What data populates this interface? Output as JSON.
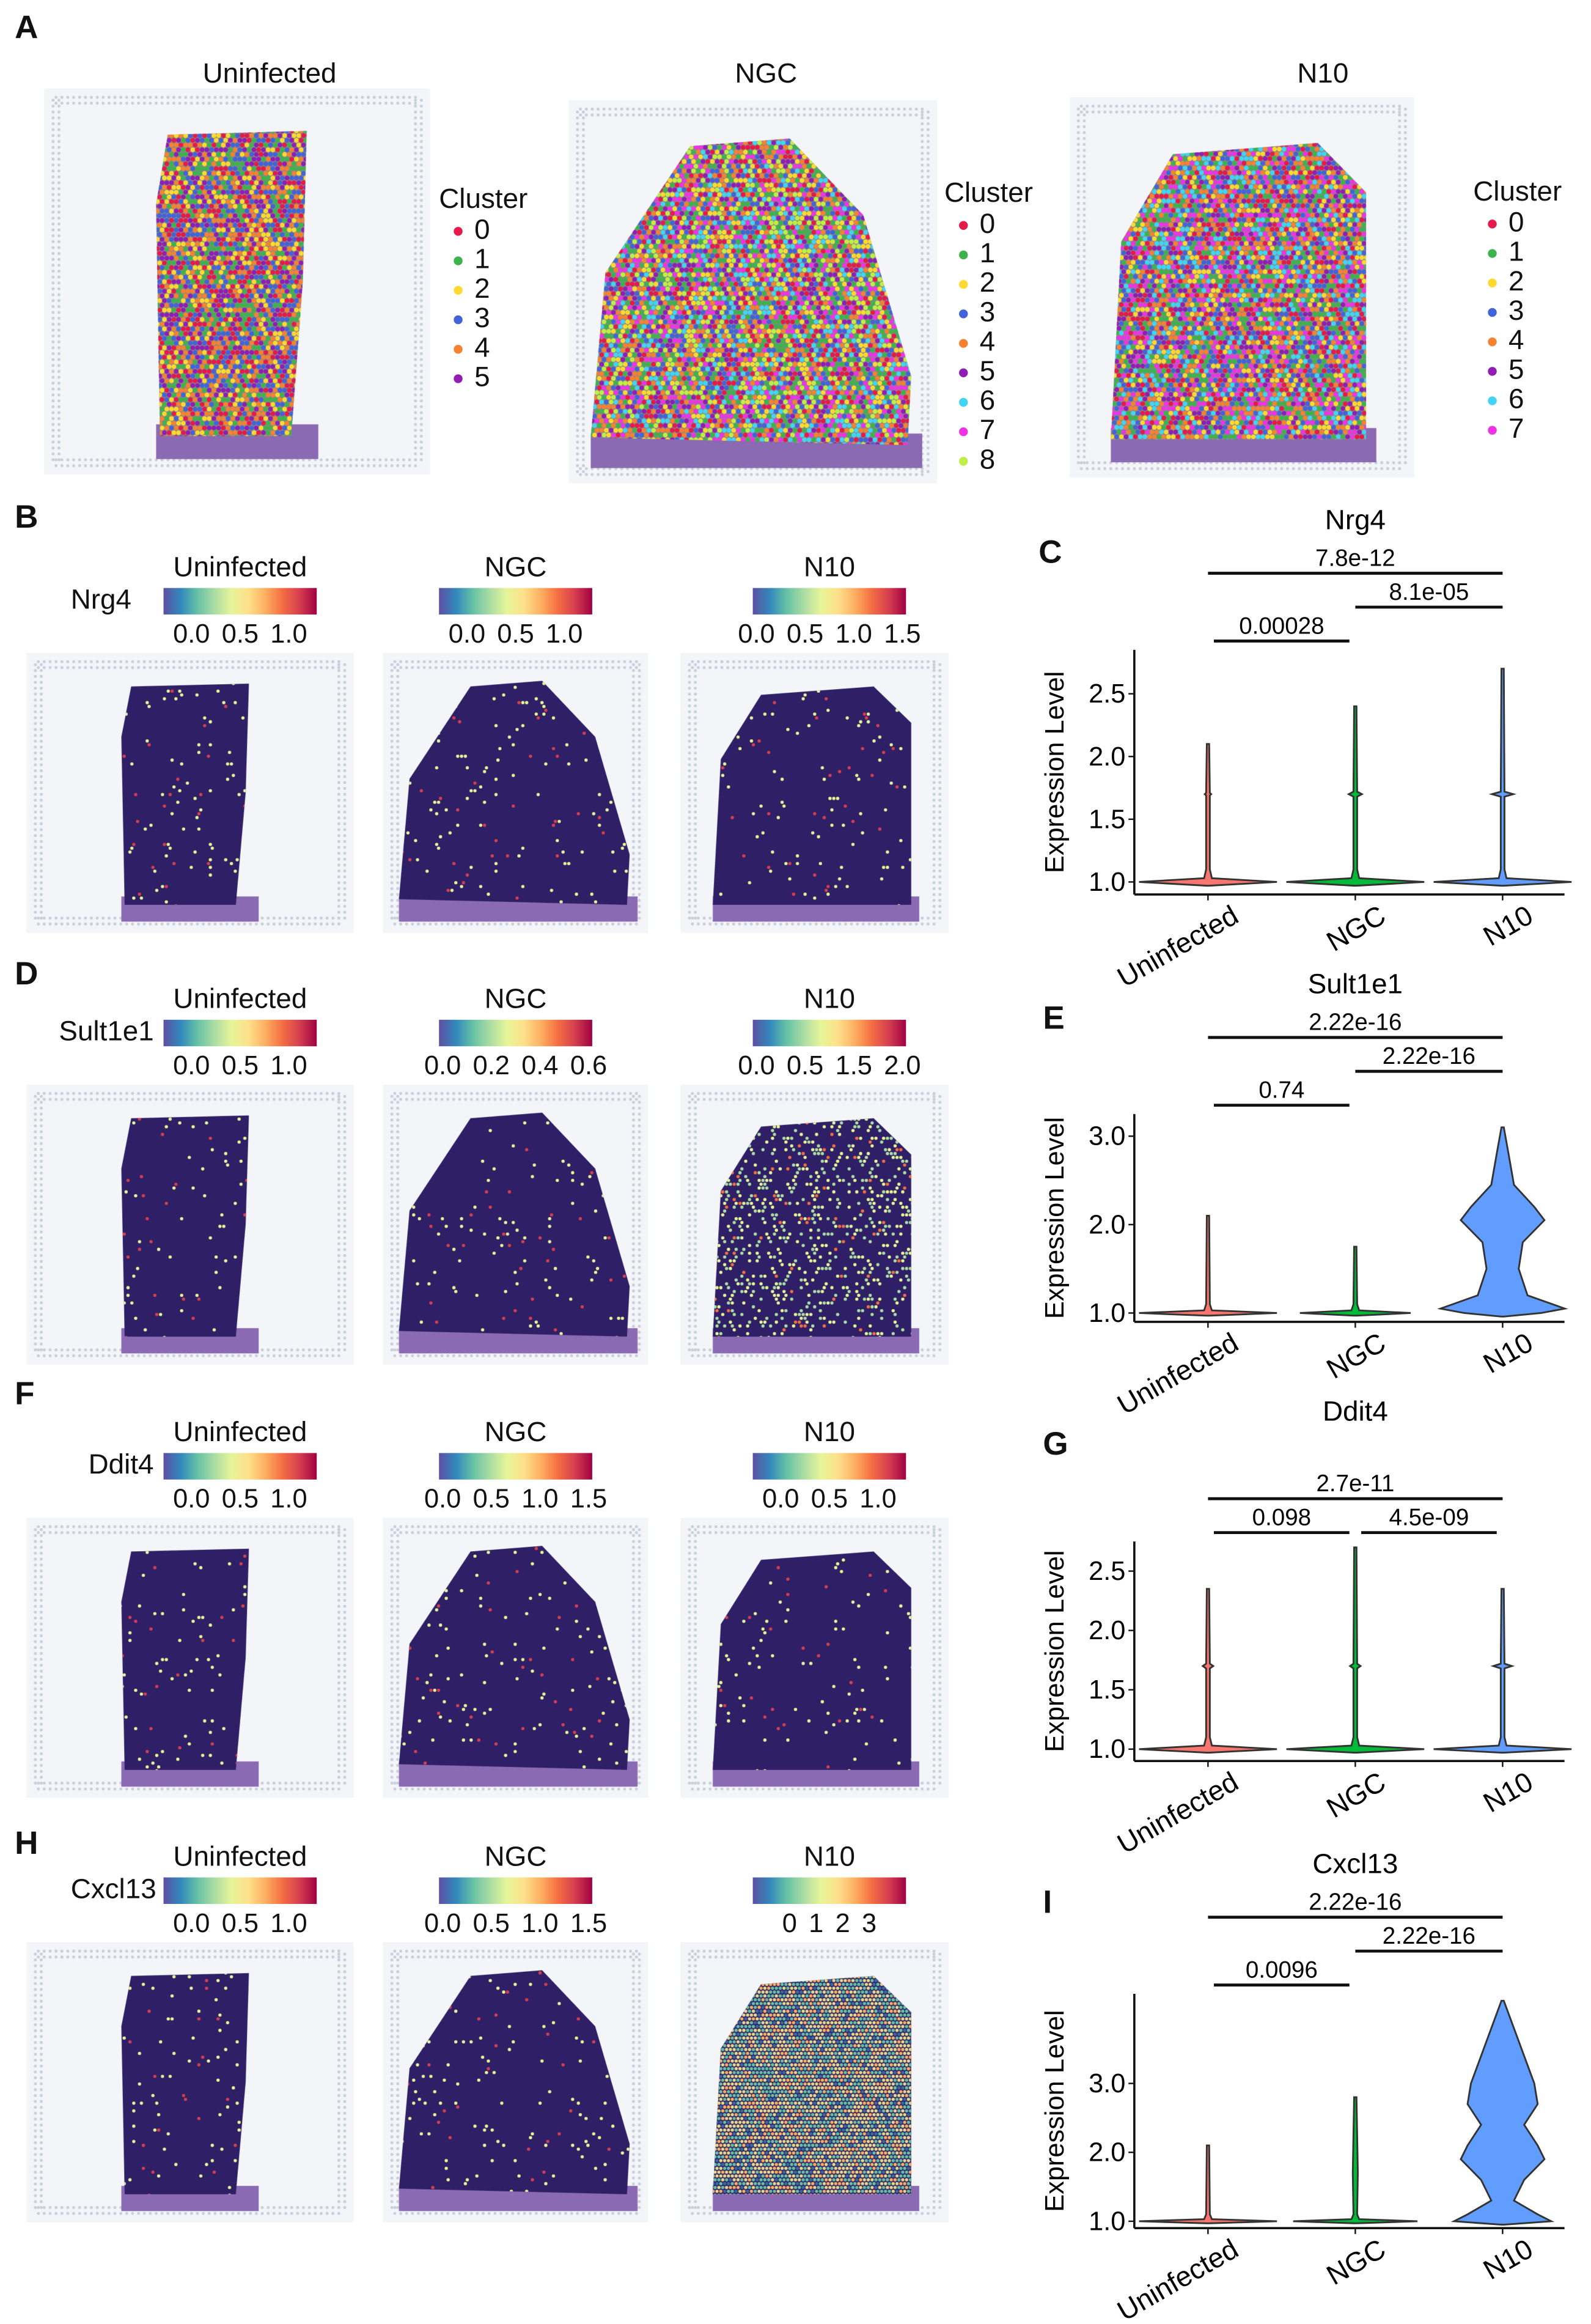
{
  "panel_labels": [
    "A",
    "B",
    "C",
    "D",
    "E",
    "F",
    "G",
    "H",
    "I"
  ],
  "panel_a": {
    "legend_title": "Cluster",
    "cluster_colors": [
      "#e6194b",
      "#3cb44b",
      "#ffd92f",
      "#4363d8",
      "#f58231",
      "#911eb4",
      "#42d4f4",
      "#f032e6",
      "#bfef45"
    ],
    "samples": [
      {
        "title": "Uninfected",
        "clusters": [
          "0",
          "1",
          "2",
          "3",
          "4",
          "5"
        ]
      },
      {
        "title": "NGC",
        "clusters": [
          "0",
          "1",
          "2",
          "3",
          "4",
          "5",
          "6",
          "7",
          "8"
        ]
      },
      {
        "title": "N10",
        "clusters": [
          "0",
          "1",
          "2",
          "3",
          "4",
          "5",
          "6",
          "7"
        ]
      }
    ]
  },
  "spatial_rows": [
    {
      "gene": "Nrg4",
      "samples": [
        {
          "title": "Uninfected",
          "ticks": [
            "0.0",
            "0.5",
            "1.0"
          ]
        },
        {
          "title": "NGC",
          "ticks": [
            "0.0",
            "0.5",
            "1.0"
          ]
        },
        {
          "title": "N10",
          "ticks": [
            "0.0",
            "0.5",
            "1.0",
            "1.5"
          ]
        }
      ]
    },
    {
      "gene": "Sult1e1",
      "samples": [
        {
          "title": "Uninfected",
          "ticks": [
            "0.0",
            "0.5",
            "1.0"
          ]
        },
        {
          "title": "NGC",
          "ticks": [
            "0.0",
            "0.2",
            "0.4",
            "0.6"
          ]
        },
        {
          "title": "N10",
          "ticks": [
            "0.0",
            "0.5",
            "1.5",
            "2.0"
          ]
        }
      ]
    },
    {
      "gene": "Ddit4",
      "samples": [
        {
          "title": "Uninfected",
          "ticks": [
            "0.0",
            "0.5",
            "1.0"
          ]
        },
        {
          "title": "NGC",
          "ticks": [
            "0.0",
            "0.5",
            "1.0",
            "1.5"
          ]
        },
        {
          "title": "N10",
          "ticks": [
            "0.0",
            "0.5",
            "1.0"
          ]
        }
      ]
    },
    {
      "gene": "Cxcl13",
      "samples": [
        {
          "title": "Uninfected",
          "ticks": [
            "0.0",
            "0.5",
            "1.0"
          ]
        },
        {
          "title": "NGC",
          "ticks": [
            "0.0",
            "0.5",
            "1.0",
            "1.5"
          ]
        },
        {
          "title": "N10",
          "ticks": [
            "0",
            "1",
            "2",
            "3"
          ]
        }
      ]
    }
  ],
  "chart_data": [
    {
      "type": "violin",
      "panel": "C",
      "title": "Nrg4",
      "ylabel": "Expression Level",
      "categories": [
        "Uninfected",
        "NGC",
        "N10"
      ],
      "colors": [
        "#f8766d",
        "#00ba38",
        "#619cff"
      ],
      "ylim": [
        0.9,
        2.85
      ],
      "yticks": [
        "1.0",
        "1.5",
        "2.0",
        "2.5"
      ],
      "ytick_values": [
        1.0,
        1.5,
        2.0,
        2.5
      ],
      "violins": [
        [
          [
            0.97,
            0
          ],
          [
            1.0,
            1
          ],
          [
            1.03,
            0.04
          ],
          [
            1.1,
            0.01
          ],
          [
            1.69,
            0.01
          ],
          [
            1.7,
            0.03
          ],
          [
            1.71,
            0.01
          ],
          [
            2.1,
            0
          ]
        ],
        [
          [
            0.97,
            0
          ],
          [
            1.0,
            1
          ],
          [
            1.03,
            0.04
          ],
          [
            1.1,
            0.01
          ],
          [
            1.68,
            0.01
          ],
          [
            1.7,
            0.08
          ],
          [
            1.72,
            0.01
          ],
          [
            2.4,
            0
          ]
        ],
        [
          [
            0.97,
            0
          ],
          [
            1.0,
            1
          ],
          [
            1.03,
            0.04
          ],
          [
            1.1,
            0.01
          ],
          [
            1.68,
            0.01
          ],
          [
            1.7,
            0.14
          ],
          [
            1.72,
            0.01
          ],
          [
            2.7,
            0
          ]
        ]
      ],
      "comparisons": [
        {
          "pair": [
            0,
            1
          ],
          "p": "0.00028",
          "level": 0
        },
        {
          "pair": [
            1,
            2
          ],
          "p": "8.1e-05",
          "level": 1
        },
        {
          "pair": [
            0,
            2
          ],
          "p": "7.8e-12",
          "level": 2
        }
      ]
    },
    {
      "type": "violin",
      "panel": "E",
      "title": "Sult1e1",
      "ylabel": "Expression Level",
      "categories": [
        "Uninfected",
        "NGC",
        "N10"
      ],
      "colors": [
        "#f8766d",
        "#00ba38",
        "#619cff"
      ],
      "ylim": [
        0.9,
        3.25
      ],
      "yticks": [
        "1.0",
        "2.0",
        "3.0"
      ],
      "ytick_values": [
        1.0,
        2.0,
        3.0
      ],
      "violins": [
        [
          [
            0.97,
            0
          ],
          [
            1.0,
            1
          ],
          [
            1.03,
            0.04
          ],
          [
            1.1,
            0.01
          ],
          [
            2.1,
            0
          ]
        ],
        [
          [
            0.97,
            0
          ],
          [
            1.0,
            0.8
          ],
          [
            1.03,
            0.04
          ],
          [
            1.1,
            0.01
          ],
          [
            1.75,
            0
          ]
        ],
        [
          [
            0.96,
            0
          ],
          [
            1.0,
            0.55
          ],
          [
            1.05,
            0.9
          ],
          [
            1.2,
            0.35
          ],
          [
            1.5,
            0.22
          ],
          [
            1.8,
            0.28
          ],
          [
            2.05,
            0.6
          ],
          [
            2.2,
            0.45
          ],
          [
            2.45,
            0.15
          ],
          [
            2.8,
            0.07
          ],
          [
            3.1,
            0
          ]
        ]
      ],
      "comparisons": [
        {
          "pair": [
            0,
            1
          ],
          "p": "0.74",
          "level": 0
        },
        {
          "pair": [
            1,
            2
          ],
          "p": "2.22e-16",
          "level": 1
        },
        {
          "pair": [
            0,
            2
          ],
          "p": "2.22e-16",
          "level": 2
        }
      ]
    },
    {
      "type": "violin",
      "panel": "G",
      "title": "Ddit4",
      "ylabel": "Expression Level",
      "categories": [
        "Uninfected",
        "NGC",
        "N10"
      ],
      "colors": [
        "#f8766d",
        "#00ba38",
        "#619cff"
      ],
      "ylim": [
        0.9,
        2.75
      ],
      "yticks": [
        "1.0",
        "1.5",
        "2.0",
        "2.5"
      ],
      "ytick_values": [
        1.0,
        1.5,
        2.0,
        2.5
      ],
      "violins": [
        [
          [
            0.97,
            0
          ],
          [
            1.0,
            1
          ],
          [
            1.03,
            0.04
          ],
          [
            1.1,
            0.01
          ],
          [
            1.68,
            0.01
          ],
          [
            1.7,
            0.06
          ],
          [
            1.72,
            0.01
          ],
          [
            2.35,
            0
          ]
        ],
        [
          [
            0.97,
            0
          ],
          [
            1.0,
            1
          ],
          [
            1.03,
            0.04
          ],
          [
            1.1,
            0.01
          ],
          [
            1.68,
            0.01
          ],
          [
            1.7,
            0.06
          ],
          [
            1.72,
            0.01
          ],
          [
            2.7,
            0
          ]
        ],
        [
          [
            0.97,
            0
          ],
          [
            1.0,
            1
          ],
          [
            1.03,
            0.04
          ],
          [
            1.1,
            0.01
          ],
          [
            1.68,
            0.01
          ],
          [
            1.7,
            0.12
          ],
          [
            1.72,
            0.01
          ],
          [
            2.35,
            0
          ]
        ]
      ],
      "comparisons": [
        {
          "pair": [
            0,
            1
          ],
          "p": "0.098",
          "level": 0
        },
        {
          "pair": [
            1,
            2
          ],
          "p": "4.5e-09",
          "level": 0
        },
        {
          "pair": [
            0,
            2
          ],
          "p": "2.7e-11",
          "level": 1
        }
      ]
    },
    {
      "type": "violin",
      "panel": "I",
      "title": "Cxcl13",
      "ylabel": "Expression Level",
      "categories": [
        "Uninfected",
        "NGC",
        "N10"
      ],
      "colors": [
        "#f8766d",
        "#00ba38",
        "#619cff"
      ],
      "ylim": [
        0.9,
        4.3
      ],
      "yticks": [
        "1.0",
        "2.0",
        "3.0"
      ],
      "ytick_values": [
        1.0,
        2.0,
        3.0
      ],
      "violins": [
        [
          [
            0.97,
            0
          ],
          [
            1.0,
            1
          ],
          [
            1.03,
            0.04
          ],
          [
            1.1,
            0.01
          ],
          [
            2.1,
            0
          ]
        ],
        [
          [
            0.97,
            0
          ],
          [
            1.0,
            0.9
          ],
          [
            1.03,
            0.04
          ],
          [
            1.1,
            0.01
          ],
          [
            1.7,
            0.02
          ],
          [
            2.8,
            0
          ]
        ],
        [
          [
            0.95,
            0
          ],
          [
            1.0,
            0.7
          ],
          [
            1.1,
            0.5
          ],
          [
            1.3,
            0.15
          ],
          [
            1.6,
            0.3
          ],
          [
            1.9,
            0.6
          ],
          [
            2.1,
            0.5
          ],
          [
            2.4,
            0.3
          ],
          [
            2.7,
            0.5
          ],
          [
            3.0,
            0.45
          ],
          [
            3.4,
            0.3
          ],
          [
            3.8,
            0.15
          ],
          [
            4.2,
            0
          ]
        ]
      ],
      "comparisons": [
        {
          "pair": [
            0,
            1
          ],
          "p": "0.0096",
          "level": 0
        },
        {
          "pair": [
            1,
            2
          ],
          "p": "2.22e-16",
          "level": 1
        },
        {
          "pair": [
            0,
            2
          ],
          "p": "2.22e-16",
          "level": 2
        }
      ]
    }
  ]
}
